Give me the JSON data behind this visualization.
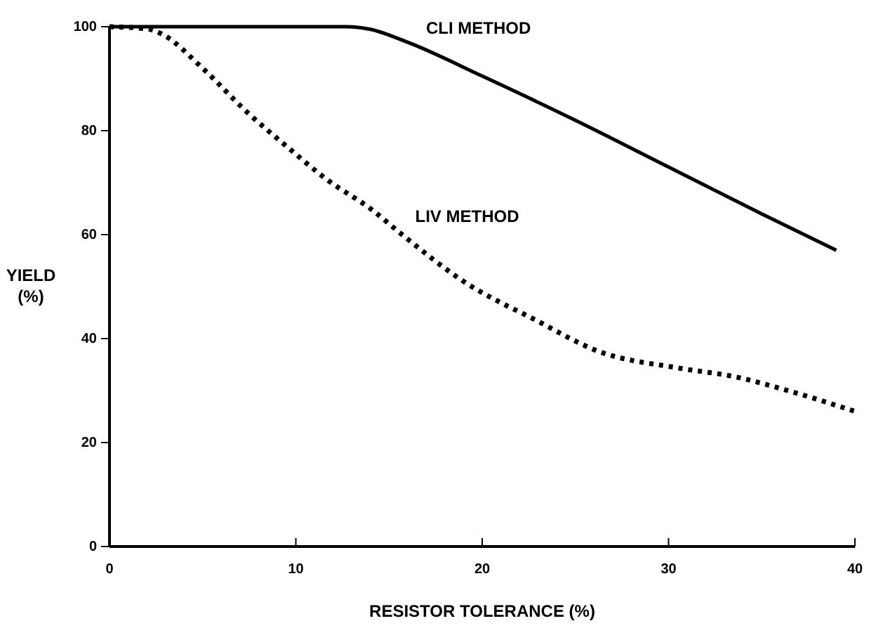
{
  "chart_data": {
    "type": "line",
    "xlabel": "RESISTOR TOLERANCE (%)",
    "ylabel": "YIELD\n(%)",
    "xlim": [
      0,
      40
    ],
    "xticks": [
      0,
      10,
      20,
      30,
      40
    ],
    "ylim": [
      0,
      100
    ],
    "yticks": [
      0,
      20,
      40,
      60,
      80,
      100
    ],
    "grid": false,
    "series": [
      {
        "name": "CLI METHOD",
        "color": "#000000",
        "line_style": "solid",
        "x": [
          0,
          12.7,
          14,
          16,
          20,
          25,
          30,
          35,
          39
        ],
        "values": [
          100,
          100,
          99.5,
          97,
          90.5,
          82,
          73,
          64,
          57
        ]
      },
      {
        "name": "LIV METHOD",
        "color": "#000000",
        "line_style": "dotted",
        "x": [
          0,
          2,
          2.8,
          5,
          7.4,
          9.5,
          11.7,
          14,
          15.8,
          19,
          22.9,
          26.2,
          30.6,
          33.5,
          36.4,
          40
        ],
        "values": [
          100,
          99.6,
          98.6,
          92,
          83.5,
          77,
          70.5,
          65,
          59.7,
          51,
          43.5,
          37.6,
          34.3,
          32.7,
          30,
          26
        ]
      }
    ]
  }
}
